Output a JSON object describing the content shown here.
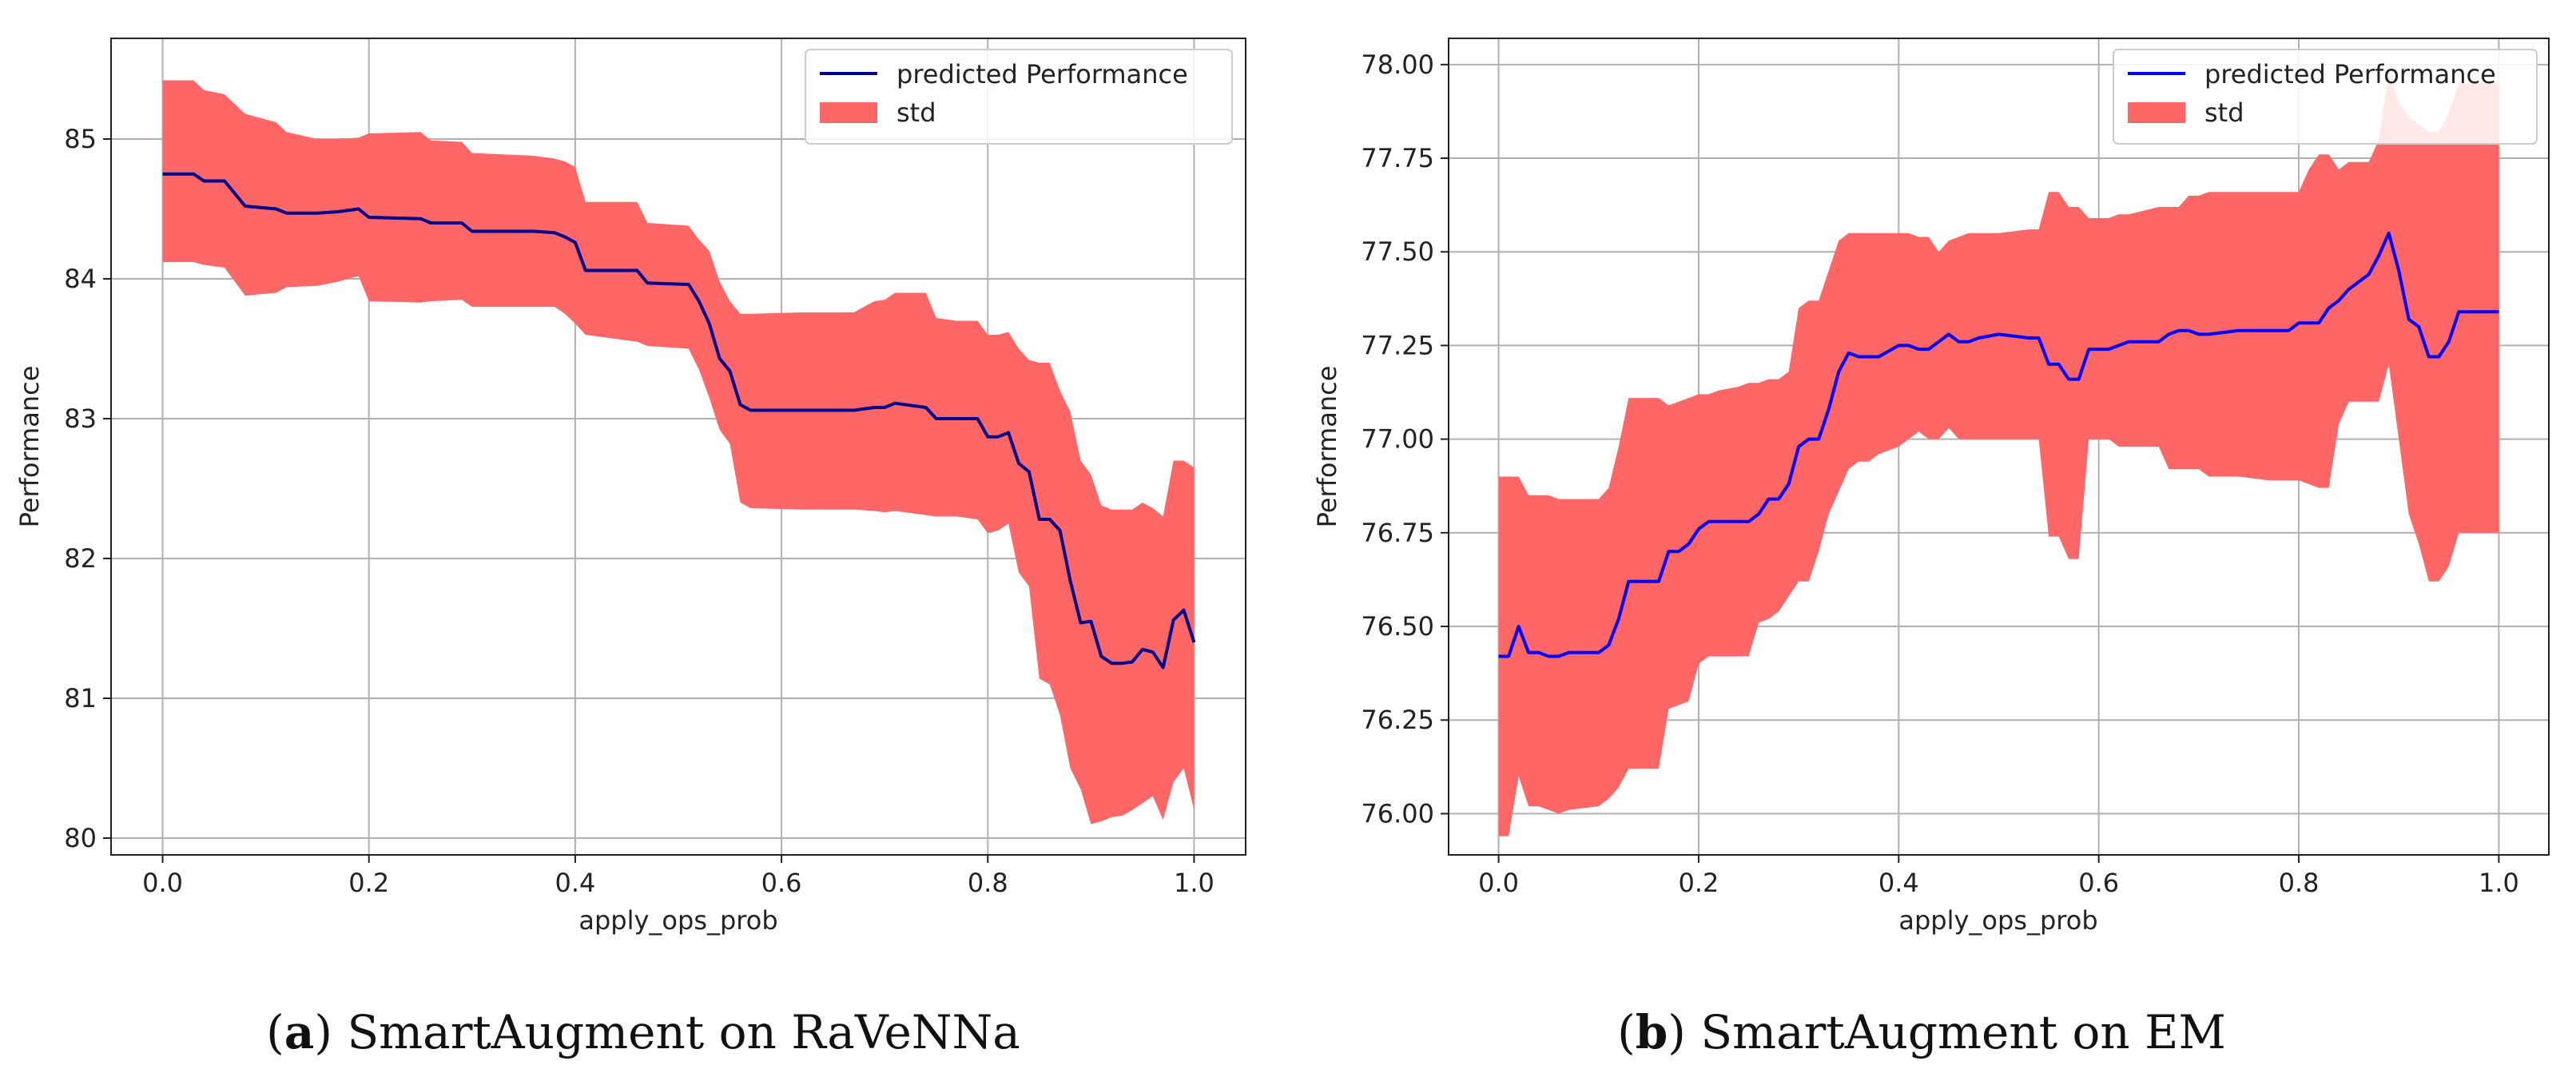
{
  "chart_data": [
    {
      "type": "line",
      "caption_letter": "a",
      "caption_text": "SmartAugment on RaVeNNa",
      "xlabel": "apply_ops_prob",
      "ylabel": "Performance",
      "xlim": [
        -0.05,
        1.05
      ],
      "ylim": [
        79.88,
        85.72
      ],
      "xticks": [
        0.0,
        0.2,
        0.4,
        0.6,
        0.8,
        1.0
      ],
      "xtick_labels": [
        "0.0",
        "0.2",
        "0.4",
        "0.6",
        "0.8",
        "1.0"
      ],
      "yticks": [
        80,
        81,
        82,
        83,
        84,
        85
      ],
      "ytick_labels": [
        "80",
        "81",
        "82",
        "83",
        "84",
        "85"
      ],
      "grid": true,
      "legend_position": "top-right",
      "line_color": "#00008b",
      "fill_color": "#ff6666",
      "series": [
        {
          "name": "predicted Performance",
          "role": "mean",
          "x": [
            0.0,
            0.03,
            0.04,
            0.06,
            0.08,
            0.11,
            0.12,
            0.15,
            0.17,
            0.19,
            0.2,
            0.25,
            0.26,
            0.29,
            0.3,
            0.36,
            0.38,
            0.39,
            0.4,
            0.41,
            0.46,
            0.47,
            0.51,
            0.52,
            0.53,
            0.54,
            0.55,
            0.56,
            0.57,
            0.62,
            0.67,
            0.69,
            0.7,
            0.71,
            0.74,
            0.75,
            0.77,
            0.79,
            0.8,
            0.81,
            0.82,
            0.83,
            0.84,
            0.85,
            0.86,
            0.87,
            0.88,
            0.89,
            0.9,
            0.91,
            0.92,
            0.93,
            0.94,
            0.95,
            0.96,
            0.97,
            0.98,
            0.99,
            1.0
          ],
          "y": [
            84.75,
            84.75,
            84.7,
            84.7,
            84.52,
            84.5,
            84.47,
            84.47,
            84.48,
            84.5,
            84.44,
            84.43,
            84.4,
            84.4,
            84.34,
            84.34,
            84.33,
            84.3,
            84.26,
            84.06,
            84.06,
            83.97,
            83.96,
            83.84,
            83.68,
            83.43,
            83.34,
            83.1,
            83.06,
            83.06,
            83.06,
            83.08,
            83.08,
            83.11,
            83.08,
            83.0,
            83.0,
            83.0,
            82.87,
            82.87,
            82.9,
            82.68,
            82.62,
            82.28,
            82.28,
            82.2,
            81.84,
            81.54,
            81.55,
            81.3,
            81.25,
            81.25,
            81.26,
            81.35,
            81.33,
            81.22,
            81.56,
            81.63,
            81.4
          ]
        },
        {
          "name": "std",
          "role": "band",
          "x": [
            0.0,
            0.03,
            0.04,
            0.06,
            0.08,
            0.11,
            0.12,
            0.15,
            0.17,
            0.19,
            0.2,
            0.25,
            0.26,
            0.29,
            0.3,
            0.36,
            0.38,
            0.39,
            0.4,
            0.41,
            0.46,
            0.47,
            0.51,
            0.52,
            0.53,
            0.54,
            0.55,
            0.56,
            0.57,
            0.62,
            0.67,
            0.69,
            0.7,
            0.71,
            0.74,
            0.75,
            0.77,
            0.79,
            0.8,
            0.81,
            0.82,
            0.83,
            0.84,
            0.85,
            0.86,
            0.87,
            0.88,
            0.89,
            0.9,
            0.91,
            0.92,
            0.93,
            0.94,
            0.95,
            0.96,
            0.97,
            0.98,
            0.99,
            1.0
          ],
          "lower": [
            84.12,
            84.12,
            84.1,
            84.08,
            83.88,
            83.9,
            83.94,
            83.95,
            83.98,
            84.02,
            83.84,
            83.83,
            83.84,
            83.85,
            83.8,
            83.8,
            83.8,
            83.75,
            83.68,
            83.6,
            83.55,
            83.52,
            83.5,
            83.35,
            83.15,
            82.92,
            82.82,
            82.4,
            82.36,
            82.35,
            82.35,
            82.34,
            82.33,
            82.34,
            82.31,
            82.3,
            82.3,
            82.28,
            82.18,
            82.2,
            82.25,
            81.9,
            81.8,
            81.14,
            81.1,
            80.88,
            80.5,
            80.35,
            80.1,
            80.12,
            80.15,
            80.16,
            80.2,
            80.25,
            80.3,
            80.13,
            80.4,
            80.5,
            80.2
          ],
          "upper": [
            85.42,
            85.42,
            85.35,
            85.32,
            85.18,
            85.12,
            85.05,
            85.0,
            85.0,
            85.01,
            85.04,
            85.05,
            84.99,
            84.98,
            84.9,
            84.88,
            84.86,
            84.84,
            84.8,
            84.55,
            84.55,
            84.4,
            84.38,
            84.28,
            84.2,
            83.98,
            83.84,
            83.75,
            83.75,
            83.76,
            83.76,
            83.84,
            83.85,
            83.9,
            83.9,
            83.72,
            83.7,
            83.7,
            83.6,
            83.6,
            83.62,
            83.5,
            83.42,
            83.4,
            83.4,
            83.2,
            83.05,
            82.7,
            82.6,
            82.38,
            82.35,
            82.35,
            82.35,
            82.4,
            82.36,
            82.3,
            82.7,
            82.7,
            82.65
          ]
        }
      ]
    },
    {
      "type": "line",
      "caption_letter": "b",
      "caption_text": "SmartAugment on EM",
      "xlabel": "apply_ops_prob",
      "ylabel": "Performance",
      "xlim": [
        -0.05,
        1.05
      ],
      "ylim": [
        75.89,
        78.07
      ],
      "xticks": [
        0.0,
        0.2,
        0.4,
        0.6,
        0.8,
        1.0
      ],
      "xtick_labels": [
        "0.0",
        "0.2",
        "0.4",
        "0.6",
        "0.8",
        "1.0"
      ],
      "yticks": [
        76.0,
        76.25,
        76.5,
        76.75,
        77.0,
        77.25,
        77.5,
        77.75,
        78.0
      ],
      "ytick_labels": [
        "76.00",
        "76.25",
        "76.50",
        "76.75",
        "77.00",
        "77.25",
        "77.50",
        "77.75",
        "78.00"
      ],
      "grid": true,
      "legend_position": "top-right",
      "line_color": "#0000ff",
      "fill_color": "#ff6666",
      "series": [
        {
          "name": "predicted Performance",
          "role": "mean",
          "x": [
            0.0,
            0.01,
            0.02,
            0.03,
            0.04,
            0.05,
            0.06,
            0.07,
            0.1,
            0.11,
            0.12,
            0.13,
            0.16,
            0.17,
            0.18,
            0.19,
            0.2,
            0.21,
            0.22,
            0.24,
            0.25,
            0.26,
            0.27,
            0.28,
            0.29,
            0.3,
            0.31,
            0.32,
            0.33,
            0.34,
            0.35,
            0.36,
            0.37,
            0.38,
            0.4,
            0.41,
            0.42,
            0.43,
            0.44,
            0.45,
            0.46,
            0.47,
            0.48,
            0.5,
            0.53,
            0.54,
            0.55,
            0.56,
            0.57,
            0.58,
            0.59,
            0.61,
            0.62,
            0.63,
            0.66,
            0.67,
            0.68,
            0.69,
            0.7,
            0.71,
            0.74,
            0.77,
            0.79,
            0.8,
            0.81,
            0.82,
            0.83,
            0.84,
            0.85,
            0.86,
            0.87,
            0.88,
            0.89,
            0.9,
            0.91,
            0.92,
            0.93,
            0.94,
            0.95,
            0.96,
            1.0
          ],
          "y": [
            76.42,
            76.42,
            76.5,
            76.43,
            76.43,
            76.42,
            76.42,
            76.43,
            76.43,
            76.45,
            76.52,
            76.62,
            76.62,
            76.7,
            76.7,
            76.72,
            76.76,
            76.78,
            76.78,
            76.78,
            76.78,
            76.8,
            76.84,
            76.84,
            76.88,
            76.98,
            77.0,
            77.0,
            77.08,
            77.18,
            77.23,
            77.22,
            77.22,
            77.22,
            77.25,
            77.25,
            77.24,
            77.24,
            77.26,
            77.28,
            77.26,
            77.26,
            77.27,
            77.28,
            77.27,
            77.27,
            77.2,
            77.2,
            77.16,
            77.16,
            77.24,
            77.24,
            77.25,
            77.26,
            77.26,
            77.28,
            77.29,
            77.29,
            77.28,
            77.28,
            77.29,
            77.29,
            77.29,
            77.31,
            77.31,
            77.31,
            77.35,
            77.37,
            77.4,
            77.42,
            77.44,
            77.49,
            77.55,
            77.45,
            77.32,
            77.3,
            77.22,
            77.22,
            77.26,
            77.34,
            77.34
          ]
        },
        {
          "name": "std",
          "role": "band",
          "x": [
            0.0,
            0.01,
            0.02,
            0.03,
            0.04,
            0.05,
            0.06,
            0.07,
            0.1,
            0.11,
            0.12,
            0.13,
            0.16,
            0.17,
            0.18,
            0.19,
            0.2,
            0.21,
            0.22,
            0.24,
            0.25,
            0.26,
            0.27,
            0.28,
            0.29,
            0.3,
            0.31,
            0.32,
            0.33,
            0.34,
            0.35,
            0.36,
            0.37,
            0.38,
            0.4,
            0.41,
            0.42,
            0.43,
            0.44,
            0.45,
            0.46,
            0.47,
            0.48,
            0.5,
            0.53,
            0.54,
            0.55,
            0.56,
            0.57,
            0.58,
            0.59,
            0.61,
            0.62,
            0.63,
            0.66,
            0.67,
            0.68,
            0.69,
            0.7,
            0.71,
            0.74,
            0.77,
            0.79,
            0.8,
            0.81,
            0.82,
            0.83,
            0.84,
            0.85,
            0.86,
            0.87,
            0.88,
            0.89,
            0.9,
            0.91,
            0.92,
            0.93,
            0.94,
            0.95,
            0.96,
            1.0
          ],
          "lower": [
            75.94,
            75.94,
            76.1,
            76.02,
            76.02,
            76.01,
            76.0,
            76.01,
            76.02,
            76.04,
            76.07,
            76.12,
            76.12,
            76.28,
            76.29,
            76.3,
            76.4,
            76.42,
            76.42,
            76.42,
            76.42,
            76.51,
            76.52,
            76.54,
            76.58,
            76.62,
            76.62,
            76.7,
            76.8,
            76.86,
            76.92,
            76.94,
            76.94,
            76.96,
            76.98,
            77.0,
            77.02,
            77.0,
            77.0,
            77.03,
            77.0,
            77.0,
            77.0,
            77.0,
            77.0,
            77.0,
            76.74,
            76.74,
            76.68,
            76.68,
            77.0,
            77.0,
            76.98,
            76.98,
            76.98,
            76.92,
            76.92,
            76.92,
            76.92,
            76.9,
            76.9,
            76.89,
            76.89,
            76.89,
            76.88,
            76.87,
            76.87,
            77.04,
            77.1,
            77.1,
            77.1,
            77.1,
            77.2,
            77.0,
            76.8,
            76.72,
            76.62,
            76.62,
            76.66,
            76.75,
            76.75
          ],
          "upper": [
            76.9,
            76.9,
            76.9,
            76.85,
            76.85,
            76.85,
            76.84,
            76.84,
            76.84,
            76.87,
            76.98,
            77.11,
            77.11,
            77.09,
            77.1,
            77.11,
            77.12,
            77.12,
            77.13,
            77.14,
            77.15,
            77.15,
            77.16,
            77.16,
            77.18,
            77.35,
            77.37,
            77.37,
            77.45,
            77.53,
            77.55,
            77.55,
            77.55,
            77.55,
            77.55,
            77.55,
            77.54,
            77.54,
            77.5,
            77.53,
            77.54,
            77.55,
            77.55,
            77.55,
            77.56,
            77.56,
            77.66,
            77.66,
            77.62,
            77.62,
            77.59,
            77.59,
            77.6,
            77.6,
            77.62,
            77.62,
            77.62,
            77.65,
            77.65,
            77.66,
            77.66,
            77.66,
            77.66,
            77.66,
            77.72,
            77.76,
            77.76,
            77.72,
            77.74,
            77.74,
            77.74,
            77.8,
            77.98,
            77.9,
            77.86,
            77.84,
            77.82,
            77.82,
            77.87,
            77.95,
            77.95
          ]
        }
      ]
    }
  ]
}
